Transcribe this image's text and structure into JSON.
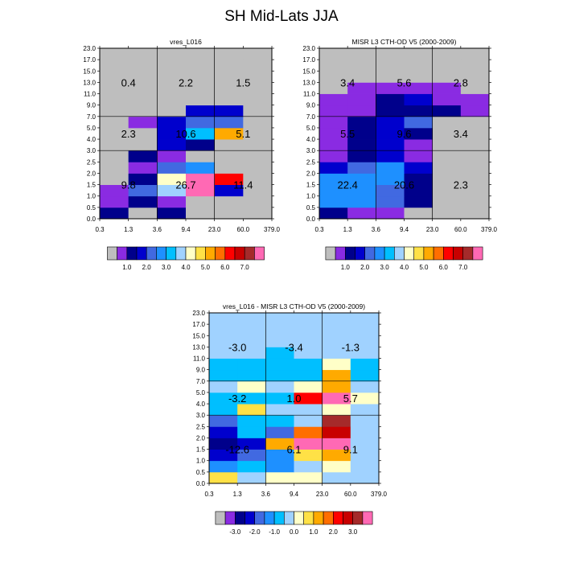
{
  "page_title": "SH Mid-Lats JJA",
  "colors": {
    "missing": "#bebebe",
    "grid": "#000000",
    "abs_palette": [
      "#bebebe",
      "#8a2be2",
      "#00008b",
      "#0000cd",
      "#4169e1",
      "#1e90ff",
      "#00bfff",
      "#a0d2ff",
      "#ffffc8",
      "#ffe146",
      "#ffaa00",
      "#ff6e00",
      "#ff0000",
      "#c80000",
      "#a52a2a",
      "#ff69b4"
    ],
    "diff_palette": [
      "#bebebe",
      "#8a2be2",
      "#00008b",
      "#0000cd",
      "#4169e1",
      "#1e90ff",
      "#00bfff",
      "#a0d2ff",
      "#ffffc8",
      "#ffe146",
      "#ffaa00",
      "#ff6e00",
      "#ff0000",
      "#c80000",
      "#a52a2a",
      "#ff69b4"
    ]
  },
  "chart_data": [
    {
      "type": "heatmap",
      "title": "vres_L016",
      "x_tick_labels": [
        "0.3",
        "1.3",
        "3.6",
        "9.4",
        "23.0",
        "60.0",
        "379.0"
      ],
      "y_tick_labels": [
        "0.0",
        "0.5",
        "1.0",
        "1.5",
        "2.0",
        "2.5",
        "3.0",
        "4.0",
        "5.0",
        "7.0",
        "9.0",
        "11.0",
        "13.0",
        "15.0",
        "17.0",
        "23.0"
      ],
      "colorbar_labels": [
        "1.0",
        "2.0",
        "3.0",
        "4.0",
        "5.0",
        "6.0",
        "7.0"
      ],
      "colorbar_label_boxes": [
        2,
        4,
        6,
        8,
        10,
        12,
        14
      ],
      "cells": [
        [
          2,
          0,
          2,
          0,
          0,
          0
        ],
        [
          1,
          2,
          1,
          0,
          0,
          0
        ],
        [
          1,
          4,
          7,
          15,
          3,
          0
        ],
        [
          0,
          2,
          8,
          15,
          12,
          0
        ],
        [
          0,
          1,
          4,
          5,
          0,
          0
        ],
        [
          0,
          2,
          1,
          0,
          0,
          0
        ],
        [
          0,
          0,
          3,
          2,
          0,
          0
        ],
        [
          0,
          0,
          3,
          6,
          10,
          0
        ],
        [
          0,
          1,
          3,
          4,
          4,
          0
        ],
        [
          0,
          0,
          0,
          3,
          3,
          0
        ],
        [
          0,
          0,
          0,
          0,
          0,
          0
        ],
        [
          0,
          0,
          0,
          0,
          0,
          0
        ],
        [
          0,
          0,
          0,
          0,
          0,
          0
        ],
        [
          0,
          0,
          0,
          0,
          0,
          0
        ],
        [
          0,
          0,
          0,
          0,
          0,
          0
        ]
      ],
      "group_values": [
        {
          "row": "low",
          "values": [
            "9.8",
            "26.7",
            "11.4"
          ]
        },
        {
          "row": "mid",
          "values": [
            "2.3",
            "10.6",
            "5.1"
          ]
        },
        {
          "row": "high",
          "values": [
            "0.4",
            "2.2",
            "1.5"
          ]
        }
      ]
    },
    {
      "type": "heatmap",
      "title": "MISR L3 CTH-OD V5 (2000-2009)",
      "x_tick_labels": [
        "0.3",
        "1.3",
        "3.6",
        "9.4",
        "23.0",
        "60.0",
        "379.0"
      ],
      "y_tick_labels": [
        "0.0",
        "0.5",
        "1.0",
        "1.5",
        "2.0",
        "2.5",
        "3.0",
        "4.0",
        "5.0",
        "7.0",
        "9.0",
        "11.0",
        "13.0",
        "15.0",
        "17.0",
        "23.0"
      ],
      "colorbar_labels": [
        "1.0",
        "2.0",
        "3.0",
        "4.0",
        "5.0",
        "6.0",
        "7.0"
      ],
      "colorbar_label_boxes": [
        2,
        4,
        6,
        8,
        10,
        12,
        14
      ],
      "cells": [
        [
          2,
          1,
          1,
          0,
          0,
          0
        ],
        [
          5,
          5,
          4,
          2,
          0,
          0
        ],
        [
          5,
          5,
          4,
          2,
          0,
          0
        ],
        [
          5,
          5,
          5,
          2,
          0,
          0
        ],
        [
          3,
          4,
          5,
          3,
          0,
          0
        ],
        [
          1,
          2,
          3,
          1,
          0,
          0
        ],
        [
          1,
          2,
          3,
          1,
          0,
          0
        ],
        [
          1,
          2,
          3,
          2,
          0,
          0
        ],
        [
          1,
          2,
          3,
          4,
          0,
          0
        ],
        [
          1,
          1,
          2,
          2,
          2,
          1
        ],
        [
          1,
          1,
          2,
          3,
          1,
          1
        ],
        [
          0,
          1,
          1,
          1,
          1,
          0
        ],
        [
          0,
          0,
          0,
          0,
          0,
          0
        ],
        [
          0,
          0,
          0,
          0,
          0,
          0
        ],
        [
          0,
          0,
          0,
          0,
          0,
          0
        ]
      ],
      "group_values": [
        {
          "row": "low",
          "values": [
            "22.4",
            "20.6",
            "2.3"
          ]
        },
        {
          "row": "mid",
          "values": [
            "5.5",
            "9.6",
            "3.4"
          ]
        },
        {
          "row": "high",
          "values": [
            "3.4",
            "5.6",
            "2.8"
          ]
        }
      ]
    },
    {
      "type": "heatmap",
      "title": "vres_L016 - MISR L3 CTH-OD V5 (2000-2009)",
      "x_tick_labels": [
        "0.3",
        "1.3",
        "3.6",
        "9.4",
        "23.0",
        "60.0",
        "379.0"
      ],
      "y_tick_labels": [
        "0.0",
        "0.5",
        "1.0",
        "1.5",
        "2.0",
        "2.5",
        "3.0",
        "4.0",
        "5.0",
        "7.0",
        "9.0",
        "11.0",
        "13.0",
        "15.0",
        "17.0",
        "23.0"
      ],
      "colorbar_labels": [
        "-3.0",
        "-2.0",
        "-1.0",
        "0.0",
        "1.0",
        "2.0",
        "3.0"
      ],
      "colorbar_label_boxes": [
        2,
        4,
        6,
        8,
        10,
        12,
        14
      ],
      "cells": [
        [
          9,
          7,
          8,
          8,
          7,
          7
        ],
        [
          5,
          6,
          5,
          7,
          8,
          7
        ],
        [
          3,
          4,
          5,
          9,
          10,
          7
        ],
        [
          2,
          3,
          10,
          15,
          15,
          7
        ],
        [
          3,
          6,
          4,
          11,
          13,
          7
        ],
        [
          4,
          6,
          6,
          7,
          14,
          7
        ],
        [
          6,
          9,
          7,
          7,
          8,
          7
        ],
        [
          6,
          6,
          6,
          12,
          15,
          8
        ],
        [
          7,
          8,
          7,
          8,
          10,
          7
        ],
        [
          6,
          6,
          6,
          6,
          10,
          6
        ],
        [
          6,
          6,
          6,
          6,
          8,
          6
        ],
        [
          7,
          7,
          6,
          7,
          7,
          7
        ],
        [
          7,
          7,
          7,
          7,
          7,
          7
        ],
        [
          7,
          7,
          7,
          7,
          7,
          7
        ],
        [
          7,
          7,
          7,
          7,
          7,
          7
        ]
      ],
      "group_values": [
        {
          "row": "low",
          "values": [
            "-12.6",
            "6.1",
            "9.1"
          ]
        },
        {
          "row": "mid",
          "values": [
            "-3.2",
            "1.0",
            "5.7"
          ]
        },
        {
          "row": "high",
          "values": [
            "-3.0",
            "-3.4",
            "-1.3"
          ]
        }
      ]
    }
  ]
}
